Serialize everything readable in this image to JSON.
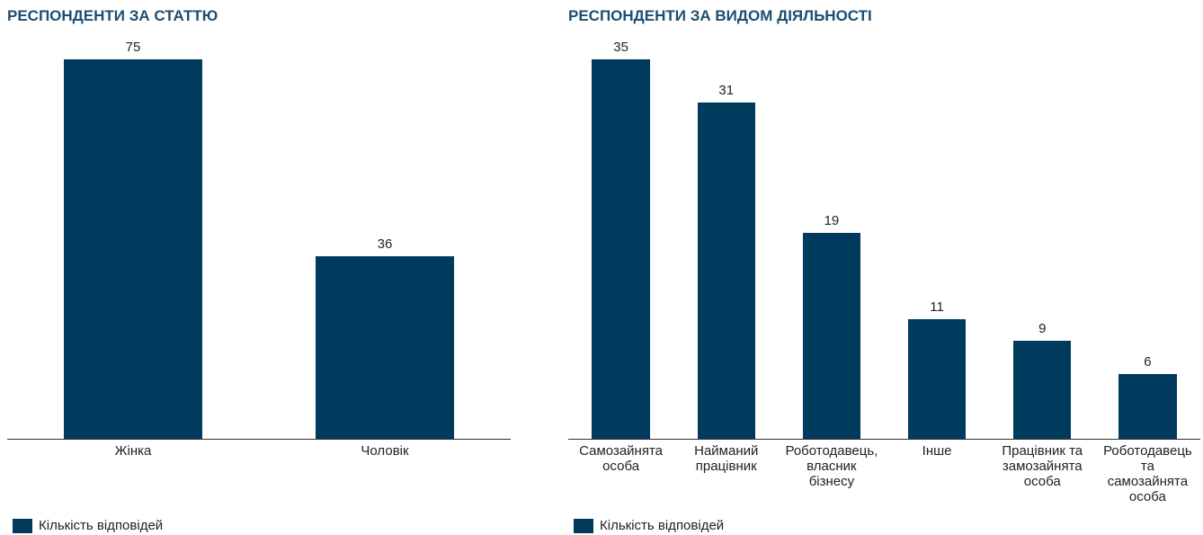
{
  "chart_data": [
    {
      "type": "bar",
      "title": "РЕСПОНДЕНТИ ЗА СТАТТЮ",
      "categories": [
        "Жінка",
        "Чоловік"
      ],
      "series": [
        {
          "name": "Кількість відповідей",
          "color": "#003a5c",
          "values": [
            75,
            36
          ]
        }
      ]
    },
    {
      "type": "bar",
      "title": "РЕСПОНДЕНТИ ЗА ВИДОМ ДІЯЛЬНОСТІ",
      "categories": [
        "Самозайнята особа",
        "Найманий працівник",
        "Роботодавець, власник бізнесу",
        "Інше",
        "Працівник та замозайнята особа",
        "Роботодавець та самозайнята особа"
      ],
      "series": [
        {
          "name": "Кількість відповідей",
          "color": "#003a5c",
          "values": [
            35,
            31,
            19,
            11,
            9,
            6
          ]
        }
      ]
    }
  ]
}
